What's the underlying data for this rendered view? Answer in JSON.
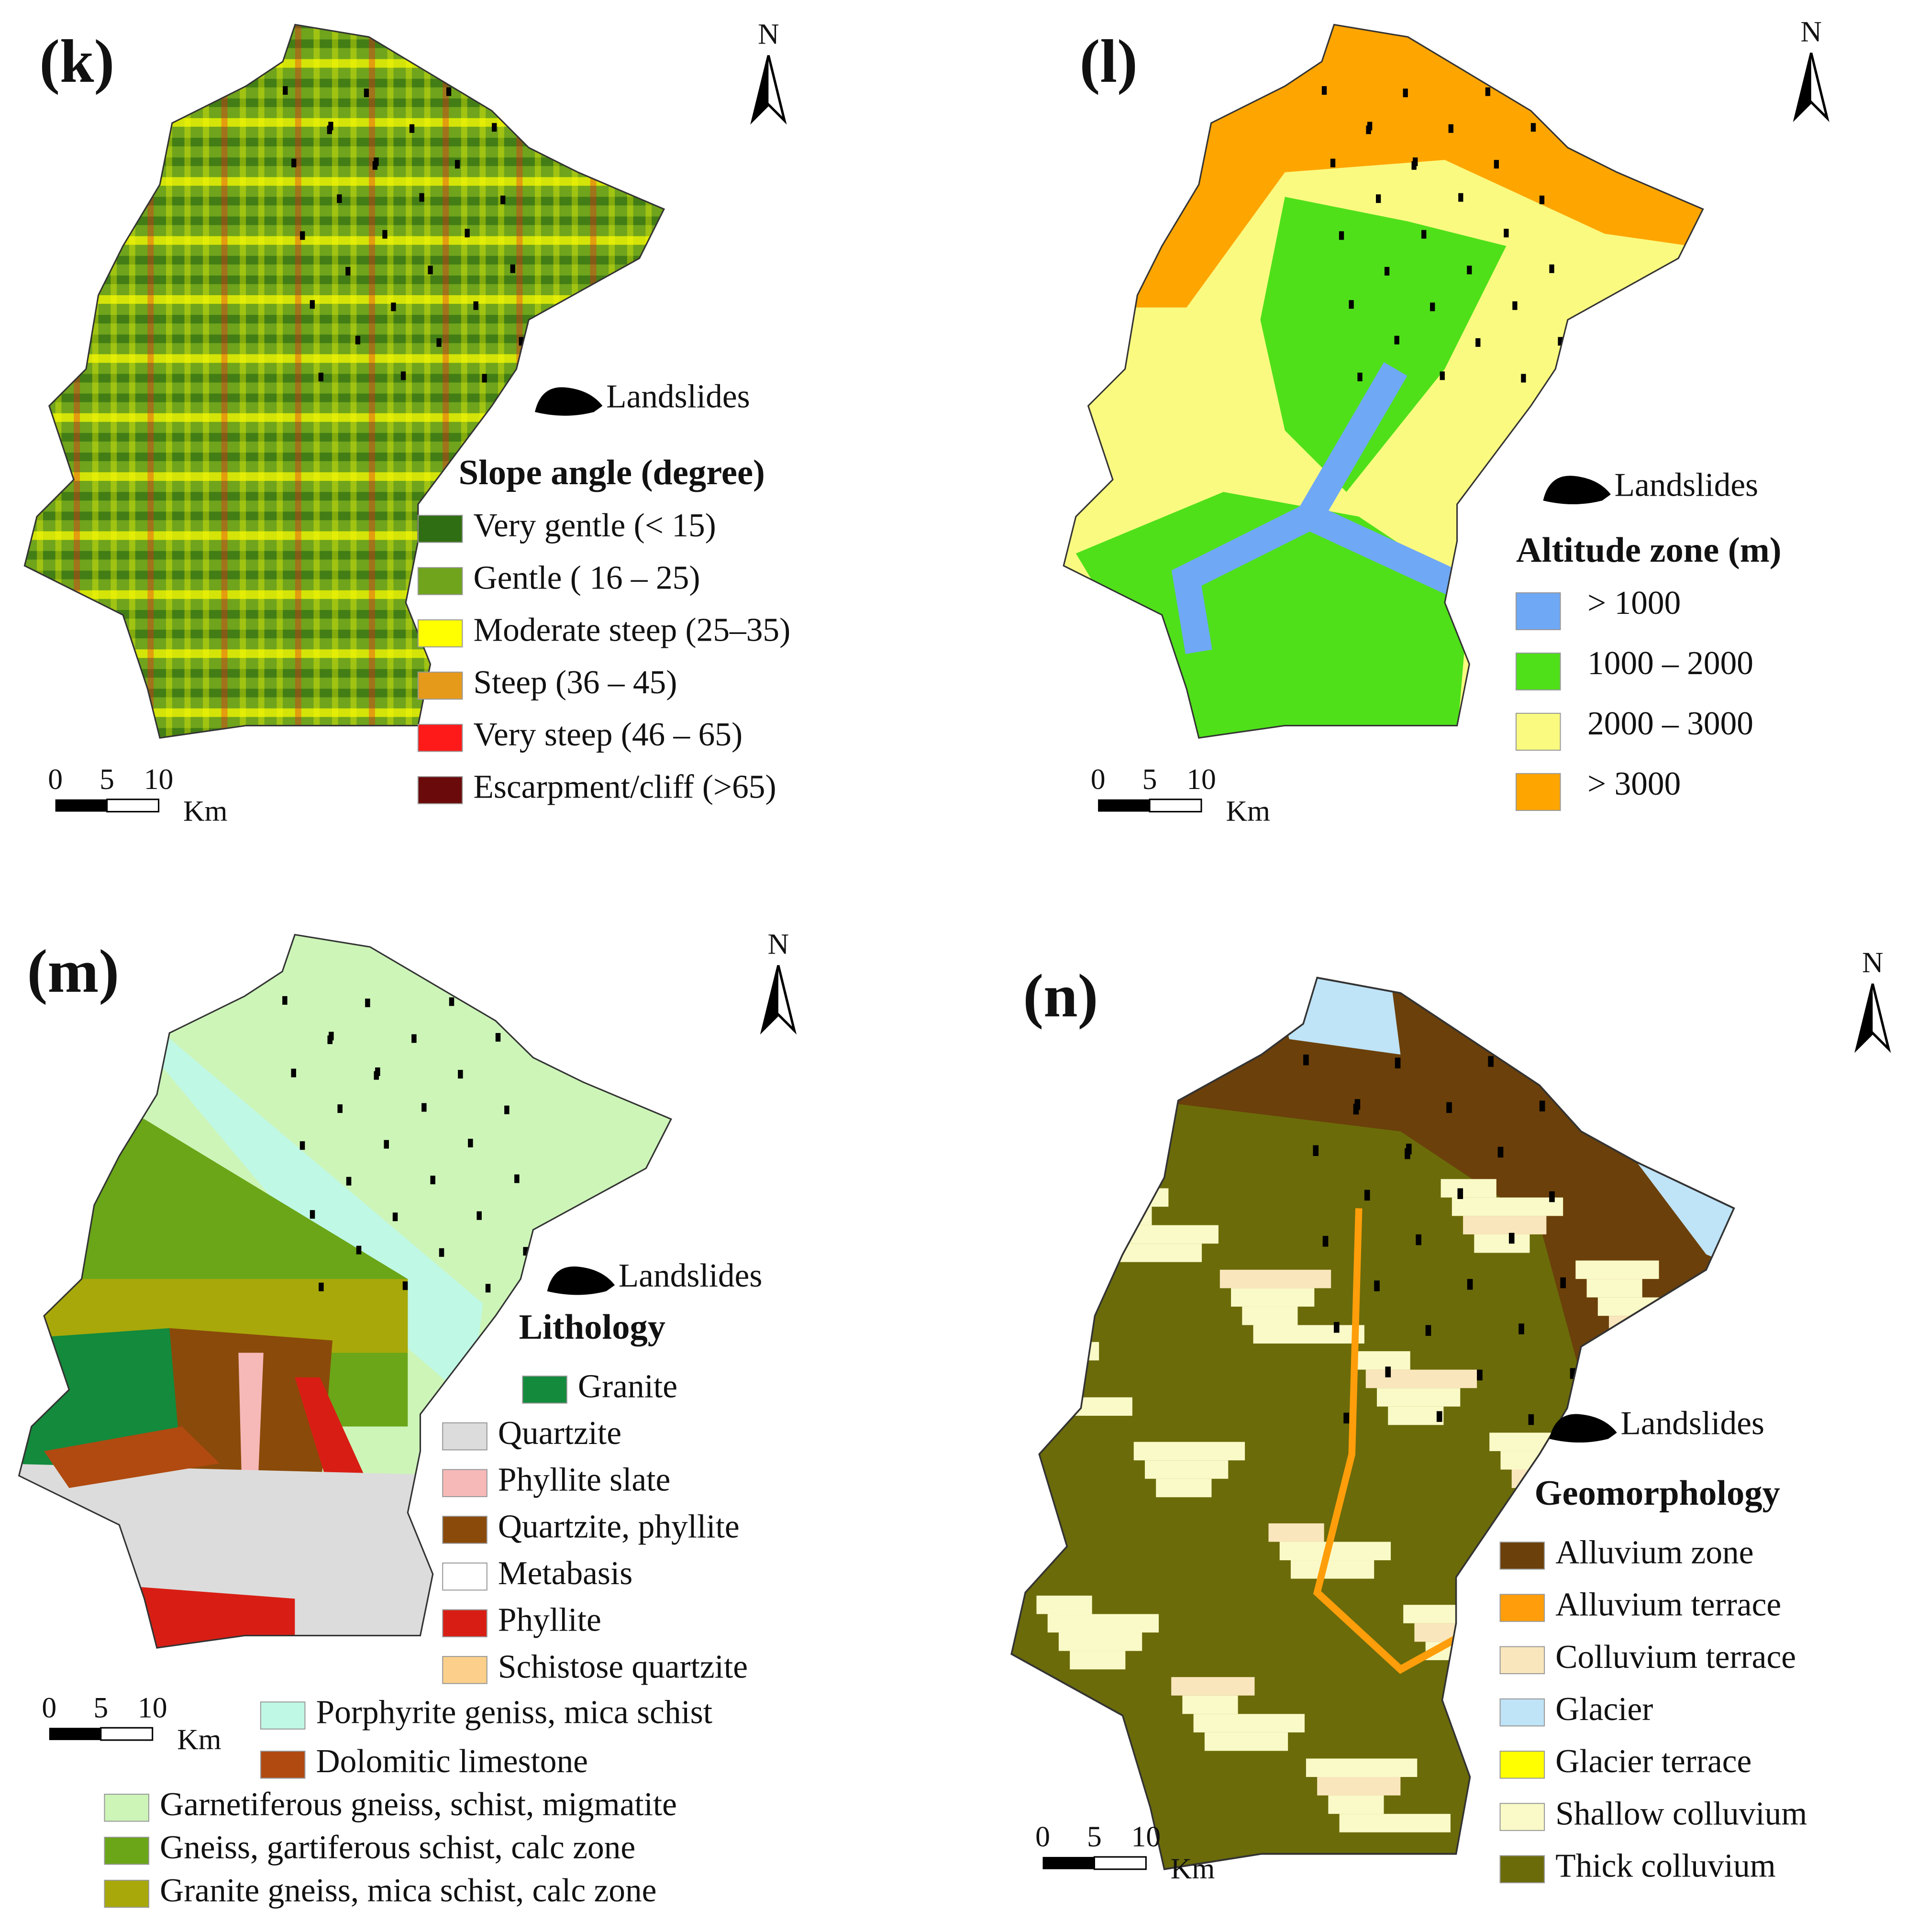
{
  "panels": [
    {
      "label": "(k)",
      "north": "N",
      "landslides": "Landslides",
      "legend_title": "Slope angle (degree)",
      "legend": [
        {
          "label": "Very gentle (< 15)",
          "color": "#2f6e12"
        },
        {
          "label": "Gentle ( 16 – 25)",
          "color": "#6fa41c"
        },
        {
          "label": "Moderate steep (25–35)",
          "color": "#ffff00"
        },
        {
          "label": "Steep (36 – 45)",
          "color": "#e69a1a"
        },
        {
          "label": "Very steep (46 – 65)",
          "color": "#ff1a1a"
        },
        {
          "label": "Escarpment/cliff (>65)",
          "color": "#6b0a0a"
        }
      ],
      "scale": {
        "ticks": [
          "0",
          "5",
          "10"
        ],
        "unit": "Km"
      }
    },
    {
      "label": "(l)",
      "north": "N",
      "landslides": "Landslides",
      "legend_title": "Altitude zone (m)",
      "legend": [
        {
          "label": "> 1000",
          "color": "#6fa8f5"
        },
        {
          "label": "1000 – 2000",
          "color": "#4fe01a"
        },
        {
          "label": "2000 – 3000",
          "color": "#fafa80"
        },
        {
          "label": "> 3000",
          "color": "#ffa500"
        }
      ],
      "scale": {
        "ticks": [
          "0",
          "5",
          "10"
        ],
        "unit": "Km"
      }
    },
    {
      "label": "(m)",
      "north": "N",
      "landslides": "Landslides",
      "legend_title": "Lithology",
      "legend": [
        {
          "label": "Granite",
          "color": "#138a3c"
        },
        {
          "label": "Quartzite",
          "color": "#dcdcdc"
        },
        {
          "label": "Phyllite slate",
          "color": "#f7b8b8"
        },
        {
          "label": "Quartzite, phyllite",
          "color": "#8a4a0a"
        },
        {
          "label": "Metabasis",
          "color": "#ffffff"
        },
        {
          "label": "Phyllite",
          "color": "#d81e14"
        },
        {
          "label": "Schistose quartzite",
          "color": "#fcd08a"
        },
        {
          "label": "Porphyrite geniss, mica schist",
          "color": "#c0f8e6"
        },
        {
          "label": "Dolomitic limestone",
          "color": "#b04a10"
        },
        {
          "label": "Garnetiferous gneiss, schist, migmatite",
          "color": "#cdf5b8"
        },
        {
          "label": "Gneiss, gartiferous schist, calc zone",
          "color": "#6aa618"
        },
        {
          "label": "Granite gneiss, mica schist, calc zone",
          "color": "#a8a80a"
        }
      ],
      "scale": {
        "ticks": [
          "0",
          "5",
          "10"
        ],
        "unit": "Km"
      }
    },
    {
      "label": "(n)",
      "north": "N",
      "landslides": "Landslides",
      "legend_title": "Geomorphology",
      "legend": [
        {
          "label": "Alluvium zone",
          "color": "#6b400a"
        },
        {
          "label": "Alluvium terrace",
          "color": "#ff9e0a"
        },
        {
          "label": "Colluvium terrace",
          "color": "#fae6bc"
        },
        {
          "label": "Glacier",
          "color": "#bfe3f7"
        },
        {
          "label": "Glacier terrace",
          "color": "#ffff00"
        },
        {
          "label": "Shallow colluvium",
          "color": "#fafac8"
        },
        {
          "label": "Thick colluvium",
          "color": "#6b6b0a"
        }
      ],
      "scale": {
        "ticks": [
          "0",
          "5",
          "10"
        ],
        "unit": "Km"
      }
    }
  ]
}
